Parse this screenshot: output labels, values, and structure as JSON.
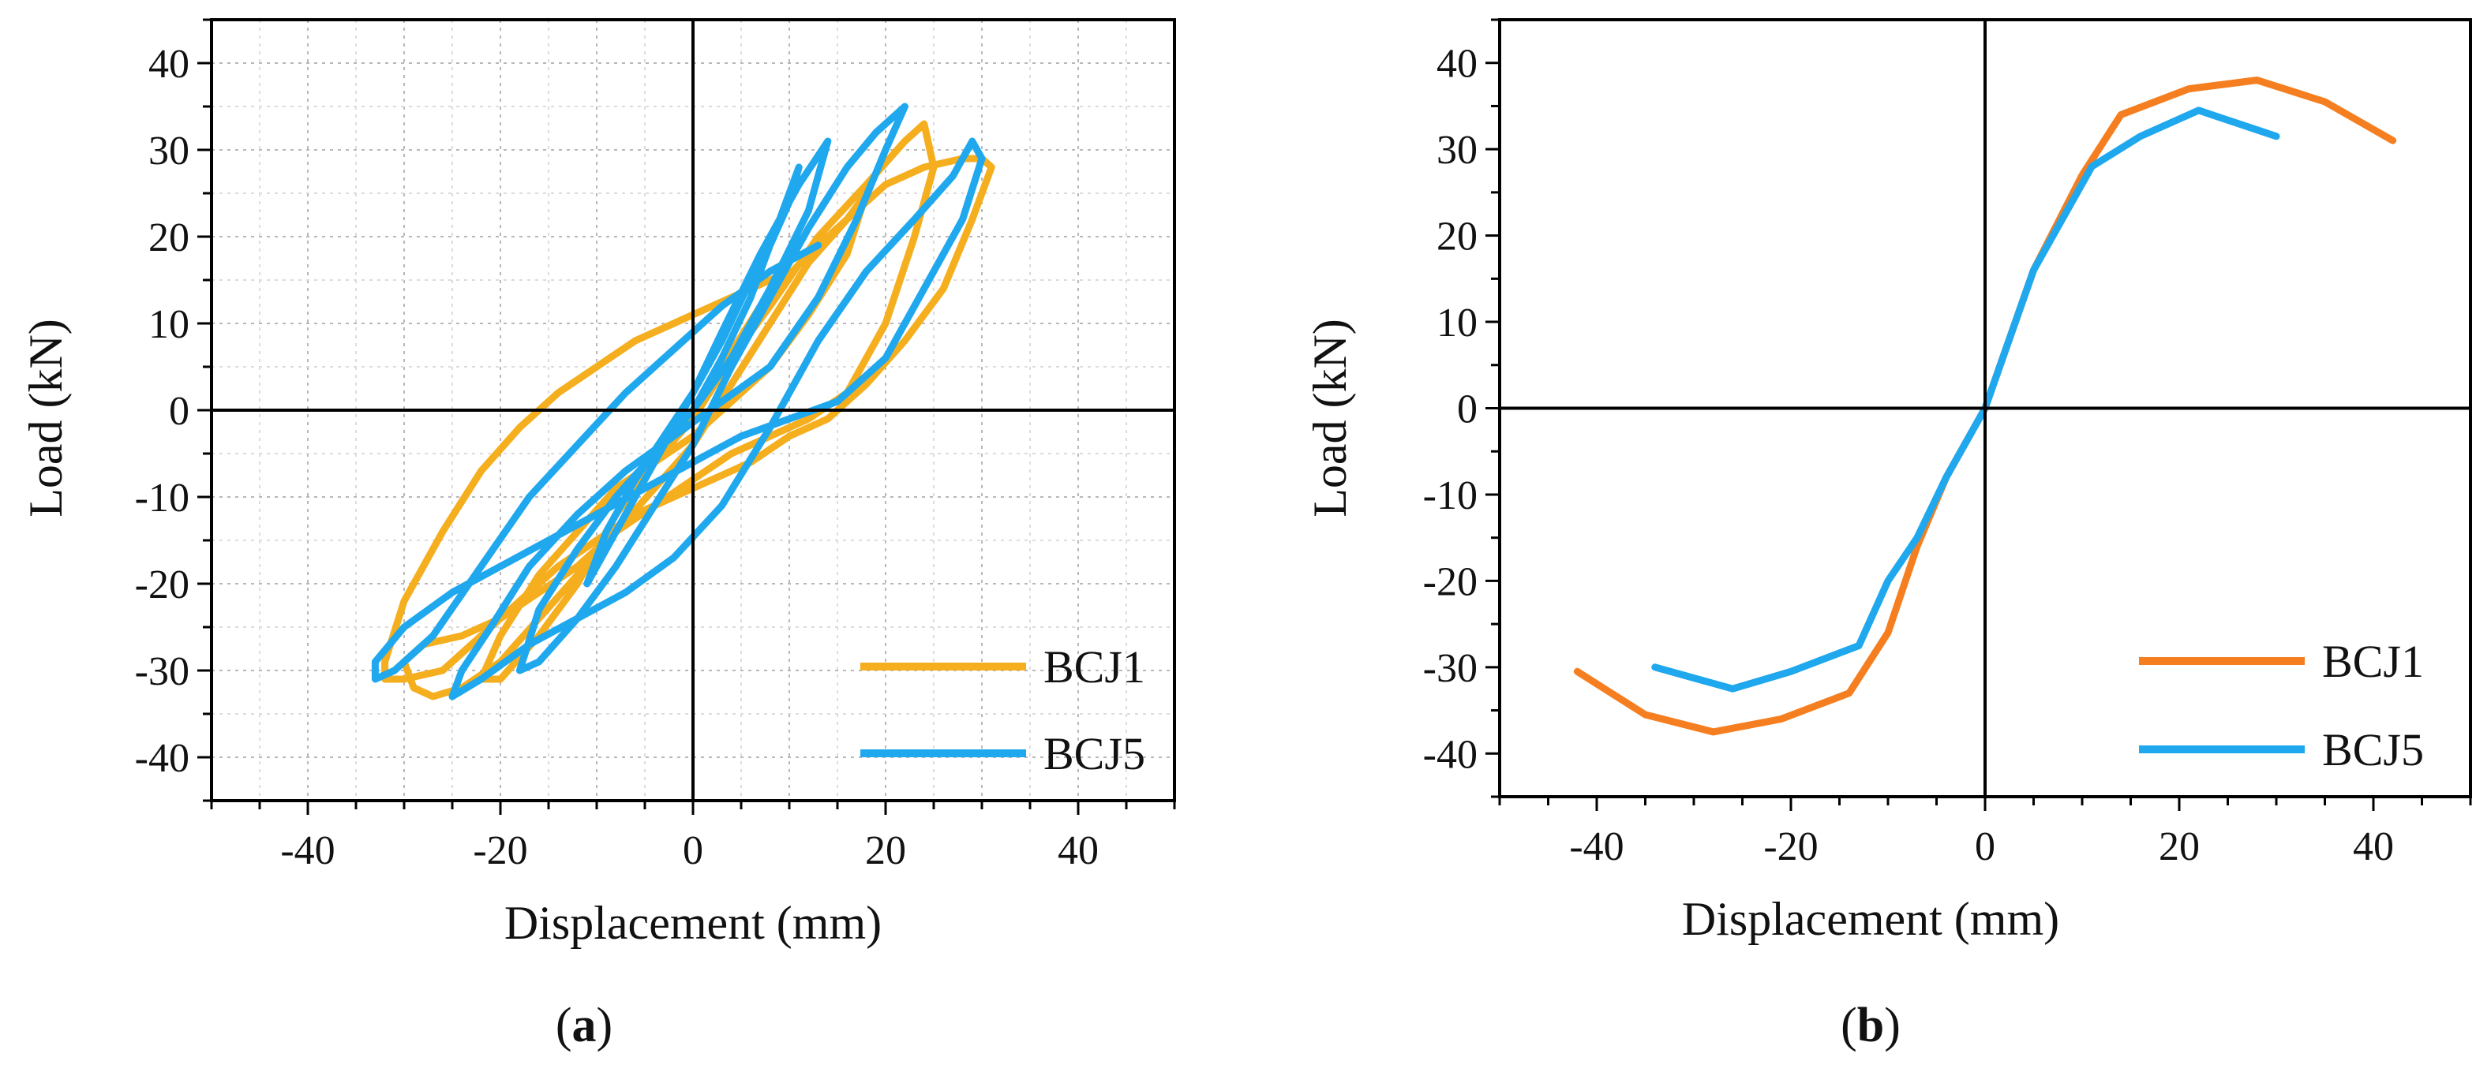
{
  "chart_data": [
    {
      "type": "line",
      "panel": "a",
      "caption_letter": "a",
      "xlabel": "Displacement (mm)",
      "ylabel": "Load (kN)",
      "xlim": [
        -50,
        50
      ],
      "ylim": [
        -45,
        45
      ],
      "xticks": [
        -40,
        -20,
        0,
        20,
        40
      ],
      "yticks": [
        -40,
        -30,
        -20,
        -10,
        0,
        10,
        20,
        30,
        40
      ],
      "grid": true,
      "legend_position": "bottom-right",
      "series": [
        {
          "name": "BCJ1",
          "color": "#F5AE1E",
          "x": [
            0,
            3,
            7,
            12,
            16,
            18,
            16,
            12,
            8,
            4,
            0,
            -4,
            -8,
            -12,
            -16,
            -20,
            -22,
            -20,
            -16,
            -12,
            -8,
            -4,
            0,
            4,
            8,
            13,
            18,
            22,
            24,
            25,
            23,
            20,
            16,
            12,
            8,
            4,
            0,
            -4,
            -8,
            -12,
            -16,
            -20,
            -24,
            -27,
            -29,
            -30,
            -28,
            -24,
            -20,
            -16,
            -12,
            -8,
            -4,
            0,
            4,
            8,
            12,
            16,
            20,
            24,
            28,
            30,
            31,
            29,
            26,
            22,
            18,
            14,
            10,
            6,
            2,
            -2,
            -6,
            -10,
            -14,
            -18,
            -22,
            -26,
            -30,
            -32,
            -32,
            -30,
            -26,
            -22,
            -18,
            -14,
            -10,
            -6,
            -2,
            2,
            6,
            10
          ],
          "y": [
            0,
            5,
            12,
            18,
            22,
            25,
            18,
            11,
            5,
            1,
            -3,
            -6,
            -9,
            -14,
            -19,
            -26,
            -31,
            -31,
            -26,
            -20,
            -12,
            -6,
            -1,
            6,
            12,
            20,
            26,
            31,
            33,
            28,
            20,
            10,
            2,
            -1,
            -3,
            -5,
            -8,
            -11,
            -14,
            -19,
            -24,
            -29,
            -32,
            -33,
            -32,
            -29,
            -27,
            -26,
            -24,
            -21,
            -18,
            -14,
            -9,
            -4,
            3,
            10,
            17,
            22,
            26,
            28,
            29,
            29,
            28,
            22,
            14,
            8,
            3,
            -1,
            -3,
            -6,
            -8,
            -10,
            -12,
            -15,
            -18,
            -22,
            -26,
            -30,
            -31,
            -31,
            -29,
            -22,
            -14,
            -7,
            -2,
            2,
            5,
            8,
            10,
            12,
            14,
            16
          ]
        },
        {
          "name": "BCJ5",
          "color": "#1FA8EE",
          "x": [
            0,
            3,
            6,
            8,
            10,
            11,
            9,
            6,
            3,
            0,
            -3,
            -6,
            -9,
            -11,
            -9,
            -6,
            -3,
            0,
            3,
            7,
            11,
            14,
            12,
            8,
            4,
            0,
            -4,
            -8,
            -12,
            -16,
            -18,
            -16,
            -12,
            -8,
            -4,
            0,
            4,
            8,
            12,
            16,
            19,
            21,
            22,
            20,
            17,
            13,
            8,
            3,
            -2,
            -7,
            -12,
            -17,
            -21,
            -24,
            -25,
            -22,
            -17,
            -12,
            -7,
            -2,
            3,
            8,
            13,
            18,
            23,
            27,
            29,
            30,
            28,
            24,
            20,
            15,
            10,
            5,
            0,
            -5,
            -10,
            -15,
            -20,
            -25,
            -30,
            -33,
            -33,
            -31,
            -27,
            -22,
            -17,
            -12,
            -7,
            -2,
            3,
            8,
            13
          ],
          "y": [
            0,
            6,
            13,
            19,
            24,
            28,
            22,
            15,
            8,
            2,
            -4,
            -10,
            -16,
            -20,
            -14,
            -8,
            -3,
            2,
            9,
            18,
            26,
            31,
            23,
            14,
            6,
            0,
            -5,
            -10,
            -16,
            -23,
            -30,
            -29,
            -24,
            -18,
            -11,
            -4,
            5,
            13,
            21,
            28,
            32,
            34,
            35,
            30,
            22,
            13,
            5,
            1,
            -3,
            -7,
            -12,
            -18,
            -25,
            -30,
            -33,
            -31,
            -27,
            -24,
            -21,
            -17,
            -11,
            -2,
            8,
            16,
            22,
            27,
            31,
            29,
            22,
            14,
            6,
            1,
            -1,
            -3,
            -6,
            -9,
            -12,
            -15,
            -18,
            -21,
            -25,
            -29,
            -31,
            -30,
            -26,
            -18,
            -10,
            -4,
            2,
            7,
            12,
            16,
            19
          ]
        }
      ],
      "legend": [
        "BCJ1",
        "BCJ5"
      ]
    },
    {
      "type": "line",
      "panel": "b",
      "caption_letter": "b",
      "xlabel": "Displacement (mm)",
      "ylabel": "Load (kN)",
      "xlim": [
        -50,
        50
      ],
      "ylim": [
        -45,
        45
      ],
      "xticks": [
        -40,
        -20,
        0,
        20,
        40
      ],
      "yticks": [
        -40,
        -30,
        -20,
        -10,
        0,
        10,
        20,
        30,
        40
      ],
      "grid": false,
      "legend_position": "bottom-right",
      "series": [
        {
          "name": "BCJ1",
          "color": "#F57F20",
          "x": [
            -42,
            -35,
            -28,
            -21,
            -14,
            -10,
            -7,
            -4,
            0,
            5,
            10,
            14,
            21,
            28,
            35,
            42
          ],
          "y": [
            -30.5,
            -35.5,
            -37.5,
            -36,
            -33,
            -26,
            -16,
            -8,
            0,
            16,
            27,
            34,
            37,
            38,
            35.5,
            31
          ]
        },
        {
          "name": "BCJ5",
          "color": "#1FA8EE",
          "x": [
            -34,
            -26,
            -20,
            -13,
            -10,
            -7,
            -4,
            0,
            5,
            11,
            16,
            22,
            30
          ],
          "y": [
            -30,
            -32.5,
            -30.5,
            -27.5,
            -20,
            -15,
            -8,
            0,
            16,
            28,
            31.5,
            34.5,
            31.5
          ]
        }
      ],
      "legend": [
        "BCJ1",
        "BCJ5"
      ]
    }
  ]
}
